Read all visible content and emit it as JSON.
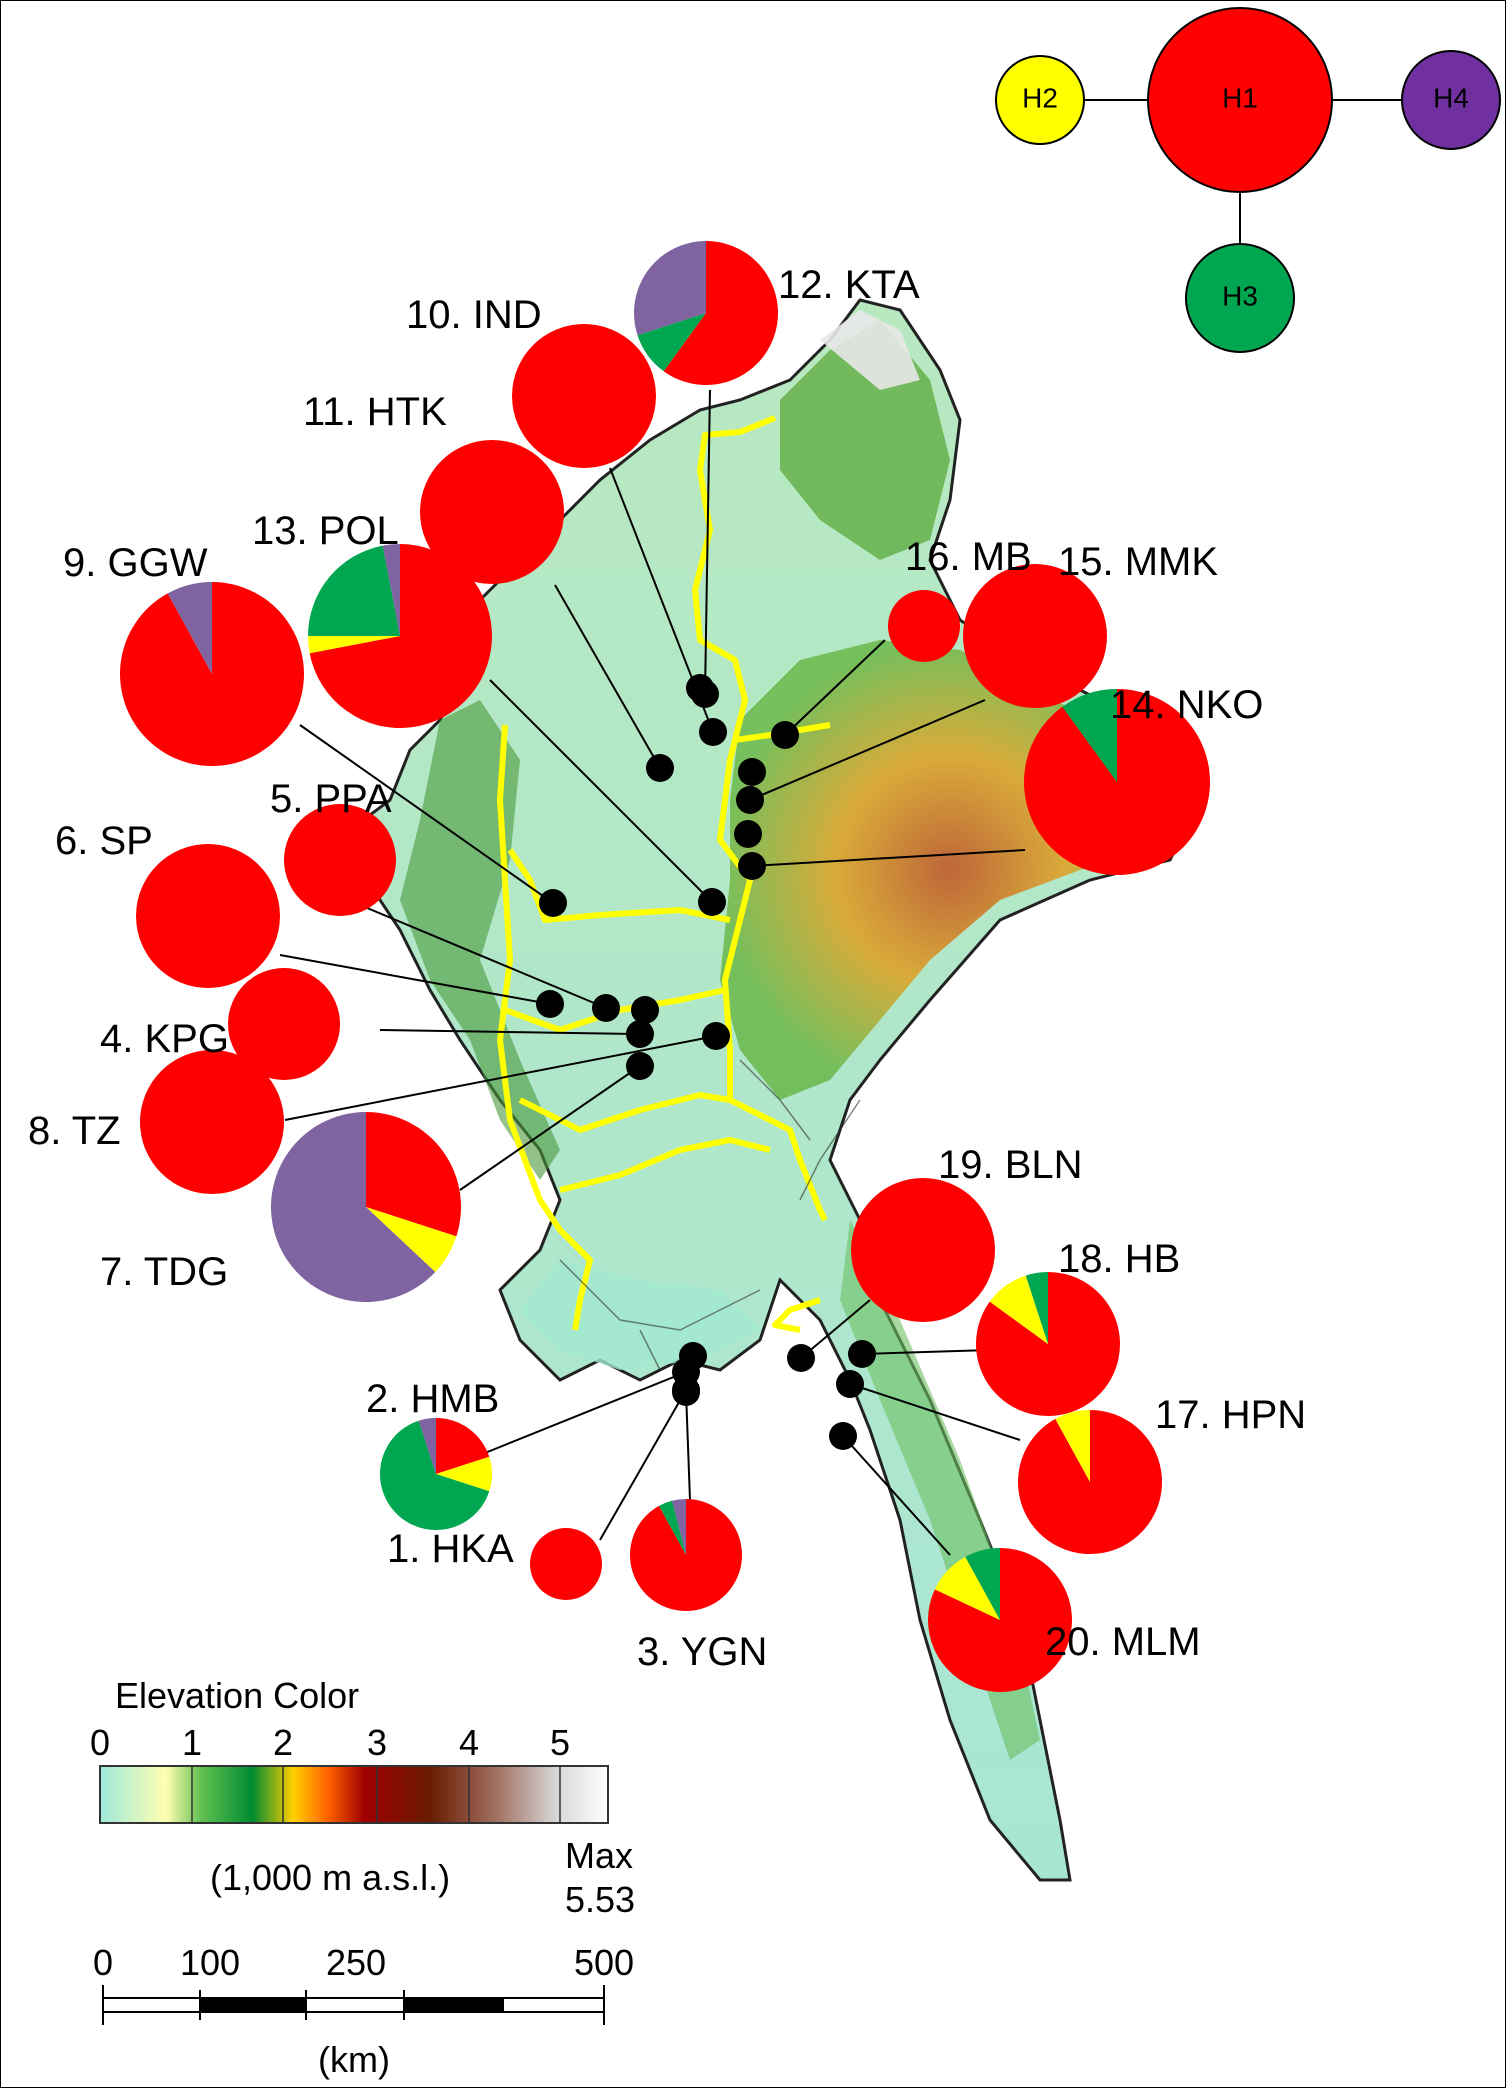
{
  "haplotypes": [
    {
      "id": "H1",
      "color": "#ff0000"
    },
    {
      "id": "H2",
      "color": "#ffff00"
    },
    {
      "id": "H3",
      "color": "#00a650"
    },
    {
      "id": "H4",
      "color": "#7030a0"
    }
  ],
  "pie_colors": {
    "H1": "#ff0000",
    "H2": "#ffff00",
    "H3": "#00a650",
    "H4": "#8064a2"
  },
  "sites": [
    {
      "label": "1. HKA",
      "H1": 1.0,
      "H2": 0,
      "H3": 0,
      "H4": 0
    },
    {
      "label": "2. HMB",
      "H1": 0.2,
      "H2": 0.1,
      "H3": 0.65,
      "H4": 0.05
    },
    {
      "label": "3. YGN",
      "H1": 0.92,
      "H2": 0,
      "H3": 0.04,
      "H4": 0.04
    },
    {
      "label": "4. KPG",
      "H1": 1.0,
      "H2": 0,
      "H3": 0,
      "H4": 0
    },
    {
      "label": "5. PPA",
      "H1": 1.0,
      "H2": 0,
      "H3": 0,
      "H4": 0
    },
    {
      "label": "6. SP",
      "H1": 1.0,
      "H2": 0,
      "H3": 0,
      "H4": 0
    },
    {
      "label": "7. TDG",
      "H1": 0.3,
      "H2": 0.07,
      "H3": 0,
      "H4": 0.63
    },
    {
      "label": "8. TZ",
      "H1": 1.0,
      "H2": 0,
      "H3": 0,
      "H4": 0
    },
    {
      "label": "9. GGW",
      "H1": 0.92,
      "H2": 0,
      "H3": 0,
      "H4": 0.08
    },
    {
      "label": "10. IND",
      "H1": 1.0,
      "H2": 0,
      "H3": 0,
      "H4": 0
    },
    {
      "label": "11. HTK",
      "H1": 1.0,
      "H2": 0,
      "H3": 0,
      "H4": 0
    },
    {
      "label": "12. KTA",
      "H1": 0.6,
      "H2": 0,
      "H3": 0.1,
      "H4": 0.3
    },
    {
      "label": "13. POL",
      "H1": 0.72,
      "H2": 0.03,
      "H3": 0.22,
      "H4": 0.03
    },
    {
      "label": "14. NKO",
      "H1": 0.9,
      "H2": 0,
      "H3": 0.1,
      "H4": 0
    },
    {
      "label": "15. MMK",
      "H1": 1.0,
      "H2": 0,
      "H3": 0,
      "H4": 0
    },
    {
      "label": "16. MB",
      "H1": 1.0,
      "H2": 0,
      "H3": 0,
      "H4": 0
    },
    {
      "label": "17. HPN",
      "H1": 0.92,
      "H2": 0.08,
      "H3": 0,
      "H4": 0
    },
    {
      "label": "18. HB",
      "H1": 0.85,
      "H2": 0.1,
      "H3": 0.05,
      "H4": 0
    },
    {
      "label": "19. BLN",
      "H1": 1.0,
      "H2": 0,
      "H3": 0,
      "H4": 0
    },
    {
      "label": "20. MLM",
      "H1": 0.82,
      "H2": 0.1,
      "H3": 0.08,
      "H4": 0
    }
  ],
  "legend": {
    "title": "Elevation Color",
    "ticks": [
      "0",
      "1",
      "2",
      "3",
      "4",
      "5"
    ],
    "unit": "(1,000 m a.s.l.)",
    "max_label": "Max",
    "max_value": "5.53"
  },
  "scale_bar": {
    "ticks": [
      "0",
      "100",
      "250",
      "500"
    ],
    "unit": "(km)"
  }
}
